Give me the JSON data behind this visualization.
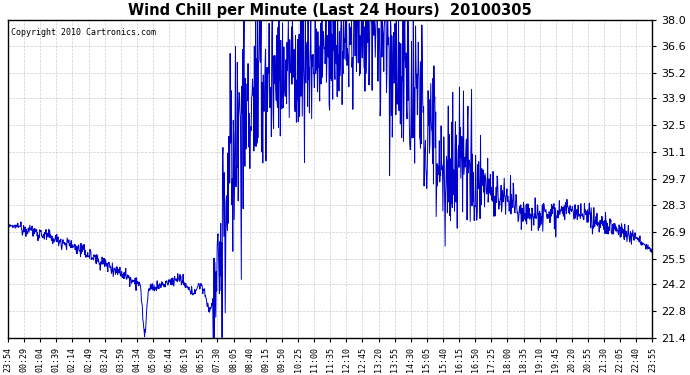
{
  "title": "Wind Chill per Minute (Last 24 Hours)  20100305",
  "copyright_text": "Copyright 2010 Cartronics.com",
  "line_color": "#0000cc",
  "background_color": "#ffffff",
  "grid_color": "#c8c8c8",
  "ylim": [
    21.4,
    38.0
  ],
  "yticks": [
    21.4,
    22.8,
    24.2,
    25.5,
    26.9,
    28.3,
    29.7,
    31.1,
    32.5,
    33.9,
    35.2,
    36.6,
    38.0
  ],
  "xtick_labels": [
    "23:54",
    "00:29",
    "01:04",
    "01:39",
    "02:14",
    "02:49",
    "03:24",
    "03:59",
    "04:34",
    "05:09",
    "05:44",
    "06:19",
    "06:55",
    "07:30",
    "08:05",
    "08:40",
    "09:15",
    "09:50",
    "10:25",
    "11:00",
    "11:35",
    "12:10",
    "12:45",
    "13:20",
    "13:55",
    "14:30",
    "15:05",
    "15:40",
    "16:15",
    "16:50",
    "17:25",
    "18:00",
    "18:35",
    "19:10",
    "19:45",
    "20:20",
    "20:55",
    "21:30",
    "22:05",
    "22:40",
    "23:55"
  ],
  "figwidth": 6.9,
  "figheight": 3.75,
  "dpi": 100
}
